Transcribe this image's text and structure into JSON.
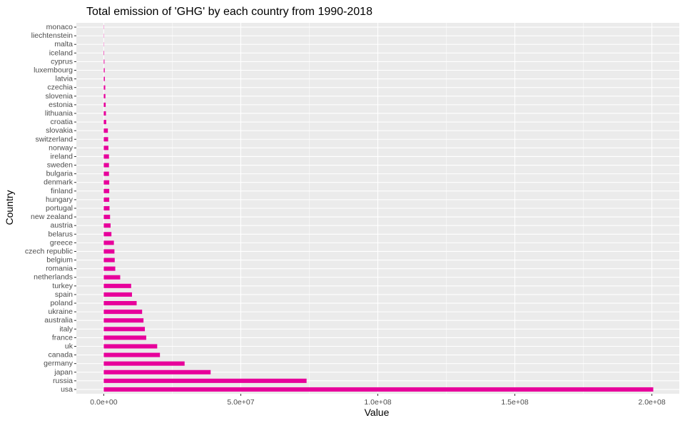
{
  "chart_data": {
    "type": "bar",
    "orientation": "horizontal",
    "title": "Total emission of 'GHG' by each country from 1990-2018",
    "xlabel": "Value",
    "ylabel": "Country",
    "xlim": [
      -10000000,
      210000000
    ],
    "x_ticks": [
      0,
      50000000,
      100000000,
      150000000,
      200000000
    ],
    "x_tick_labels": [
      "0.0e+00",
      "5.0e+07",
      "1.0e+08",
      "1.5e+08",
      "2.0e+08"
    ],
    "grid": true,
    "legend": "none",
    "categories": [
      "usa",
      "russia",
      "japan",
      "germany",
      "canada",
      "uk",
      "france",
      "italy",
      "australia",
      "ukraine",
      "poland",
      "spain",
      "turkey",
      "netherlands",
      "romania",
      "belgium",
      "czech republic",
      "greece",
      "belarus",
      "austria",
      "new zealand",
      "portugal",
      "hungary",
      "finland",
      "denmark",
      "bulgaria",
      "sweden",
      "ireland",
      "norway",
      "switzerland",
      "slovakia",
      "croatia",
      "lithuania",
      "estonia",
      "slovenia",
      "czechia",
      "latvia",
      "luxembourg",
      "cyprus",
      "iceland",
      "malta",
      "liechtenstein",
      "monaco"
    ],
    "values": [
      200500000,
      74000000,
      39000000,
      29500000,
      20500000,
      19500000,
      15500000,
      15000000,
      14500000,
      14000000,
      12000000,
      10300000,
      10000000,
      6000000,
      4200000,
      4000000,
      3900000,
      3700000,
      2800000,
      2500000,
      2300000,
      2100000,
      2000000,
      2000000,
      2000000,
      1900000,
      1900000,
      1900000,
      1700000,
      1600000,
      1500000,
      900000,
      800000,
      700000,
      600000,
      550000,
      400000,
      350000,
      250000,
      150000,
      80000,
      10000,
      3000
    ]
  },
  "colors": {
    "bar": "#e7009b",
    "panel": "#ebebeb",
    "grid_major": "#ffffff",
    "tick_text": "#4d4d4d",
    "tick_mark": "#333333"
  }
}
